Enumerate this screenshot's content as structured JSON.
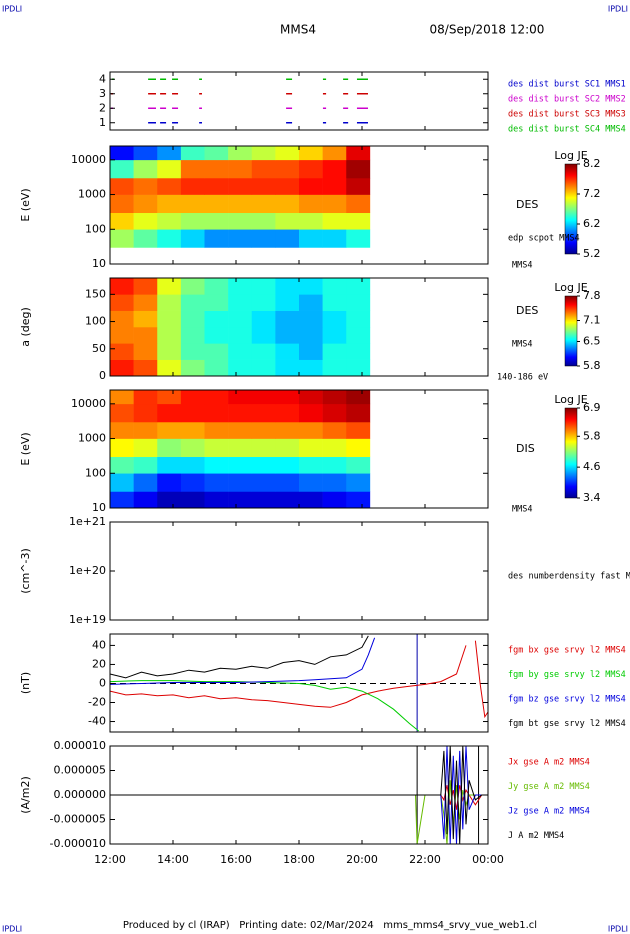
{
  "header": {
    "corner_left": "IPDLI",
    "corner_right": "IPDLI",
    "title": "MMS4",
    "date": "08/Sep/2018 12:00",
    "footer": "Produced by cl (IRAP)   Printing date: 02/Mar/2024   mms_mms4_srvy_vue_web1.cl",
    "footer_left": "IPDLI",
    "footer_right": "IPDLI"
  },
  "time_axis": {
    "xlim": [
      12,
      24
    ],
    "xticks": [
      {
        "value": 12,
        "label": "12:00"
      },
      {
        "value": 14,
        "label": "14:00"
      },
      {
        "value": 16,
        "label": "16:00"
      },
      {
        "value": 18,
        "label": "18:00"
      },
      {
        "value": 20,
        "label": "20:00"
      },
      {
        "value": 22,
        "label": "22:00"
      },
      {
        "value": 24,
        "label": "00:00"
      }
    ]
  },
  "chart_data": [
    {
      "type": "timeline",
      "ylim": [
        0.5,
        4.5
      ],
      "yticks": [
        1,
        2,
        3,
        4
      ],
      "series": [
        {
          "name": "des dist burst SC1 MMS1",
          "color": "#0000cc",
          "y": 1,
          "intervals": [
            [
              13.21,
              13.46
            ],
            [
              13.59,
              13.78
            ],
            [
              13.97,
              14.16
            ],
            [
              14.83,
              14.92
            ],
            [
              17.59,
              17.78
            ],
            [
              18.76,
              18.86
            ],
            [
              19.4,
              19.56
            ],
            [
              19.84,
              20.19
            ]
          ]
        },
        {
          "name": "des dist burst SC2 MMS2",
          "color": "#cc00cc",
          "y": 2,
          "intervals": [
            [
              12.03,
              12.1
            ],
            [
              13.21,
              13.46
            ],
            [
              13.59,
              13.78
            ],
            [
              13.97,
              14.16
            ],
            [
              14.83,
              14.92
            ],
            [
              17.59,
              17.78
            ],
            [
              18.76,
              18.86
            ],
            [
              19.4,
              19.56
            ],
            [
              19.84,
              20.19
            ]
          ]
        },
        {
          "name": "des dist burst SC3 MMS3",
          "color": "#cc0000",
          "y": 3,
          "intervals": [
            [
              12.03,
              12.1
            ],
            [
              13.21,
              13.46
            ],
            [
              13.59,
              13.78
            ],
            [
              13.97,
              14.16
            ],
            [
              14.83,
              14.92
            ],
            [
              17.59,
              17.78
            ],
            [
              18.76,
              18.86
            ],
            [
              19.4,
              19.56
            ],
            [
              19.84,
              20.19
            ]
          ]
        },
        {
          "name": "des dist burst SC4 MMS4",
          "color": "#00bb00",
          "y": 4,
          "intervals": [
            [
              12.06,
              12.13
            ],
            [
              13.21,
              13.46
            ],
            [
              13.59,
              13.78
            ],
            [
              13.97,
              14.16
            ],
            [
              14.83,
              14.92
            ],
            [
              17.59,
              17.78
            ],
            [
              18.76,
              18.86
            ],
            [
              19.4,
              19.56
            ],
            [
              19.84,
              20.19
            ]
          ]
        }
      ]
    },
    {
      "type": "spectrogram",
      "ylabel": "E (eV)",
      "log": true,
      "ylim": [
        10,
        25000
      ],
      "yticks": [
        10,
        100,
        1000,
        10000
      ],
      "side_labels": [
        "DES",
        "edp scpot MMS4",
        "MMS4"
      ],
      "colorbar": {
        "title": "Log JE",
        "clim": [
          5.2,
          8.2
        ],
        "ticks": [
          5.2,
          6.2,
          7.2,
          8.2
        ]
      },
      "t_edges": [
        12,
        12.75,
        13.5,
        14.25,
        15,
        15.75,
        16.5,
        17.25,
        18,
        18.75,
        19.5,
        20.25
      ],
      "e_edges": [
        30,
        100,
        300,
        1000,
        3000,
        10000,
        25000
      ],
      "values": [
        [
          6.8,
          6.6,
          6.4,
          6.2,
          6.0,
          6.0,
          6.0,
          6.0,
          6.2,
          6.2,
          6.4
        ],
        [
          7.2,
          7.0,
          6.9,
          6.8,
          6.8,
          6.8,
          6.8,
          6.9,
          6.9,
          7.0,
          7.0
        ],
        [
          7.5,
          7.4,
          7.3,
          7.3,
          7.3,
          7.3,
          7.3,
          7.3,
          7.4,
          7.4,
          7.5
        ],
        [
          7.6,
          7.5,
          7.6,
          7.7,
          7.7,
          7.7,
          7.7,
          7.7,
          7.8,
          7.8,
          8.0
        ],
        [
          6.5,
          6.8,
          7.0,
          7.5,
          7.5,
          7.5,
          7.6,
          7.6,
          7.7,
          7.8,
          8.1
        ],
        [
          5.6,
          5.8,
          6.0,
          6.5,
          6.6,
          6.8,
          6.9,
          7.0,
          7.2,
          7.4,
          7.9
        ]
      ]
    },
    {
      "type": "spectrogram",
      "ylabel": "a (deg)",
      "log": false,
      "ylim": [
        0,
        180
      ],
      "yticks": [
        0,
        50,
        100,
        150
      ],
      "side_labels": [
        "DES",
        "MMS4",
        "140-186 eV"
      ],
      "colorbar": {
        "title": "Log JE",
        "clim": [
          5.8,
          7.8
        ],
        "ticks": [
          5.8,
          6.5,
          7.1,
          7.8
        ]
      },
      "t_edges": [
        12,
        12.75,
        13.5,
        14.25,
        15,
        15.75,
        16.5,
        17.25,
        18,
        18.75,
        19.5,
        20.25
      ],
      "e_edges": [
        0,
        30,
        60,
        90,
        120,
        150,
        180
      ],
      "values": [
        [
          7.5,
          7.4,
          7.0,
          6.8,
          6.7,
          6.6,
          6.6,
          6.5,
          6.5,
          6.6,
          6.6
        ],
        [
          7.4,
          7.3,
          6.9,
          6.7,
          6.7,
          6.6,
          6.6,
          6.5,
          6.4,
          6.6,
          6.6
        ],
        [
          7.3,
          7.3,
          6.9,
          6.7,
          6.6,
          6.6,
          6.5,
          6.4,
          6.4,
          6.5,
          6.6
        ],
        [
          7.3,
          7.2,
          6.9,
          6.7,
          6.6,
          6.6,
          6.5,
          6.4,
          6.4,
          6.5,
          6.6
        ],
        [
          7.4,
          7.3,
          6.9,
          6.7,
          6.7,
          6.6,
          6.6,
          6.5,
          6.4,
          6.6,
          6.6
        ],
        [
          7.5,
          7.4,
          7.0,
          6.8,
          6.7,
          6.6,
          6.6,
          6.5,
          6.5,
          6.6,
          6.6
        ]
      ]
    },
    {
      "type": "spectrogram",
      "ylabel": "E (eV)",
      "log": true,
      "ylim": [
        10,
        25000
      ],
      "yticks": [
        10,
        100,
        1000,
        10000
      ],
      "side_labels": [
        "DIS",
        "MMS4"
      ],
      "colorbar": {
        "title": "Log JE",
        "clim": [
          3.4,
          6.9
        ],
        "ticks": [
          3.4,
          4.6,
          5.8,
          6.9
        ]
      },
      "t_edges": [
        12,
        12.75,
        13.5,
        14.25,
        15,
        15.75,
        16.5,
        17.25,
        18,
        18.75,
        19.5,
        20.25
      ],
      "e_edges": [
        10,
        30,
        100,
        300,
        1000,
        3000,
        10000,
        25000
      ],
      "values": [
        [
          4.0,
          3.8,
          3.6,
          3.6,
          3.7,
          3.7,
          3.7,
          3.7,
          3.7,
          3.8,
          3.9
        ],
        [
          4.5,
          4.2,
          3.9,
          4.0,
          4.1,
          4.1,
          4.1,
          4.1,
          4.2,
          4.2,
          4.3
        ],
        [
          5.0,
          4.9,
          4.6,
          4.6,
          4.7,
          4.7,
          4.7,
          4.7,
          4.8,
          4.8,
          4.9
        ],
        [
          5.6,
          5.5,
          5.2,
          5.3,
          5.4,
          5.4,
          5.4,
          5.4,
          5.5,
          5.5,
          5.6
        ],
        [
          6.0,
          6.0,
          5.9,
          5.9,
          6.0,
          6.0,
          6.0,
          6.0,
          6.0,
          6.1,
          6.2
        ],
        [
          6.2,
          6.3,
          6.4,
          6.4,
          6.4,
          6.4,
          6.4,
          6.4,
          6.5,
          6.6,
          6.7
        ],
        [
          6.0,
          6.3,
          6.2,
          6.4,
          6.4,
          6.5,
          6.5,
          6.5,
          6.6,
          6.7,
          6.8
        ]
      ]
    },
    {
      "type": "line",
      "ylabel": "(cm^-3)",
      "log": true,
      "ylim": [
        1e+19,
        1e+21
      ],
      "yticks": [
        {
          "value": 1e+19,
          "label": "1e+19"
        },
        {
          "value": 1e+20,
          "label": "1e+20"
        },
        {
          "value": 1e+21,
          "label": "1e+21"
        }
      ],
      "side_labels": [
        "des numberdensity fast M"
      ],
      "series": []
    },
    {
      "type": "line",
      "ylabel": "(nT)",
      "log": false,
      "ylim": [
        -51,
        52
      ],
      "yticks": [
        -40,
        -20,
        0,
        20,
        40
      ],
      "zero_line": true,
      "vlines": [
        {
          "x": 21.75,
          "color": "#0000aa"
        }
      ],
      "series": [
        {
          "name": "fgm bx gse srvy l2 MMS4",
          "color": "#dd0000",
          "x": [
            12,
            12.5,
            13,
            13.5,
            14,
            14.5,
            15,
            15.5,
            16,
            16.5,
            17,
            17.5,
            18,
            18.5,
            19,
            19.5,
            20,
            20.5,
            21,
            21.5,
            22,
            22.5,
            23,
            23.3,
            23.45,
            23.6,
            23.75,
            23.9,
            24
          ],
          "values": [
            -8,
            -12,
            -11,
            -13,
            -12,
            -15,
            -13,
            -16,
            -15,
            -17,
            -18,
            -20,
            -22,
            -24,
            -25,
            -20,
            -12,
            -8,
            -5,
            -3,
            -1,
            2,
            10,
            40,
            null,
            45,
            0,
            -35,
            -30
          ]
        },
        {
          "name": "fgm by gse srvy l2 MMS4",
          "color": "#00cc00",
          "x": [
            12,
            13,
            14,
            15,
            16,
            17,
            18,
            18.5,
            19,
            19.5,
            20,
            20.5,
            21,
            21.5,
            21.8
          ],
          "values": [
            2,
            3,
            3,
            2,
            2,
            1,
            0,
            -2,
            -6,
            -4,
            -8,
            -16,
            -27,
            -42,
            -50
          ]
        },
        {
          "name": "fgm bz gse srvy l2 MMS4",
          "color": "#0000dd",
          "x": [
            12,
            13,
            14,
            15,
            16,
            17,
            18,
            18.5,
            19,
            19.5,
            20,
            20.2,
            20.4
          ],
          "values": [
            -1,
            0,
            1,
            1,
            1,
            2,
            3,
            4,
            5,
            6,
            15,
            30,
            48
          ]
        },
        {
          "name": "fgm bt gse srvy l2 MMS4",
          "color": "#000000",
          "x": [
            12,
            12.5,
            13,
            13.5,
            14,
            14.5,
            15,
            15.5,
            16,
            16.5,
            17,
            17.5,
            18,
            18.5,
            19,
            19.5,
            20,
            20.2
          ],
          "values": [
            10,
            6,
            12,
            8,
            10,
            14,
            12,
            16,
            15,
            18,
            16,
            22,
            24,
            20,
            28,
            30,
            38,
            50
          ]
        }
      ]
    },
    {
      "type": "line",
      "ylabel": "(A/m2)",
      "log": false,
      "ylim": [
        -1e-05,
        1e-05
      ],
      "yticks": [
        {
          "value": -1e-05,
          "label": "-0.000010"
        },
        {
          "value": -5e-06,
          "label": "-0.000005"
        },
        {
          "value": 0,
          "label": "0.000000"
        },
        {
          "value": 5e-06,
          "label": "0.000005"
        },
        {
          "value": 1e-05,
          "label": "0.000010"
        }
      ],
      "vlines": [
        {
          "x": 21.75,
          "color": "#000000"
        },
        {
          "x": 23.7,
          "color": "#000000"
        }
      ],
      "series": [
        {
          "name": "Jx gse A m2 MMS4",
          "color": "#dd0000",
          "x": [
            12,
            14,
            16,
            18,
            20,
            21.7,
            21.75,
            22,
            22.5,
            22.6,
            22.7,
            22.8,
            22.9,
            23,
            23.1,
            23.2,
            23.3,
            23.4,
            23.6,
            23.8,
            24
          ],
          "values": [
            0,
            0,
            0,
            0,
            0,
            0,
            0,
            0,
            0,
            -1e-06,
            2e-06,
            -2e-06,
            1e-06,
            -3e-06,
            2e-06,
            -1e-06,
            1e-06,
            0,
            -2e-06,
            0,
            0
          ]
        },
        {
          "name": "Jy gse A m2 MMS4",
          "color": "#66bb00",
          "x": [
            12,
            14,
            16,
            18,
            20,
            21.7,
            21.75,
            22,
            22.5,
            22.6,
            22.7,
            22.8,
            22.9,
            23,
            23.1,
            23.2,
            23.3,
            23.4,
            23.6,
            23.8,
            24
          ],
          "values": [
            0,
            0,
            0,
            0,
            0,
            0,
            -1e-05,
            0,
            0,
            -4e-06,
            -1e-05,
            3e-06,
            -6e-06,
            2e-06,
            -5e-06,
            1e-06,
            -2e-06,
            0,
            0,
            0,
            0
          ]
        },
        {
          "name": "Jz gse A m2 MMS4",
          "color": "#0000dd",
          "x": [
            12,
            14,
            16,
            18,
            20,
            21.7,
            21.75,
            22,
            22.5,
            22.6,
            22.7,
            22.8,
            22.9,
            23,
            23.1,
            23.2,
            23.3,
            23.4,
            23.6,
            23.8,
            24
          ],
          "values": [
            0,
            0,
            0,
            0,
            0,
            0,
            0,
            0,
            0,
            -9e-06,
            1e-05,
            -1e-05,
            8e-06,
            -1e-05,
            9e-06,
            -7e-06,
            1e-05,
            -3e-06,
            0,
            0,
            0
          ]
        },
        {
          "name": "J A m2 MMS4",
          "color": "#000000",
          "x": [
            12,
            14,
            16,
            18,
            20,
            21.7,
            21.75,
            22,
            22.5,
            22.6,
            22.7,
            22.8,
            22.9,
            23,
            23.1,
            23.2,
            23.3,
            23.4,
            23.6,
            23.8,
            24
          ],
          "values": [
            0,
            0,
            0,
            0,
            0,
            0,
            0,
            0,
            0,
            9e-06,
            -8e-06,
            1e-05,
            -9e-06,
            7e-06,
            -1e-05,
            1e-05,
            -6e-06,
            3e-06,
            -1e-06,
            0,
            0
          ]
        }
      ]
    }
  ]
}
